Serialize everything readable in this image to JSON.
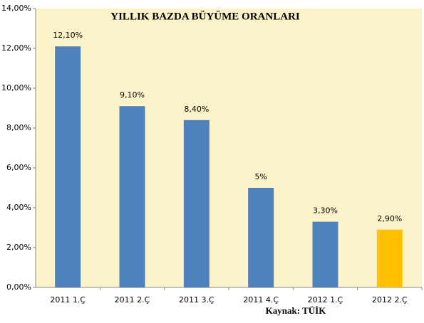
{
  "chart_data": {
    "type": "bar",
    "title": "YILLIK BAZDA BÜYÜME ORANLARI",
    "categories": [
      "2011 1.Ç",
      "2011 2.Ç",
      "2011 3.Ç",
      "2011 4.Ç",
      "2012 1.Ç",
      "2012 2.Ç"
    ],
    "values": [
      12.1,
      9.1,
      8.4,
      5,
      3.3,
      2.9
    ],
    "value_labels": [
      "12,10%",
      "9,10%",
      "8,40%",
      "5%",
      "3,30%",
      "2,90%"
    ],
    "colors": [
      "#4f81bd",
      "#4f81bd",
      "#4f81bd",
      "#4f81bd",
      "#4f81bd",
      "#ffc000"
    ],
    "ylim": [
      0,
      14
    ],
    "yticks": [
      {
        "value": 0,
        "label": "0,00%"
      },
      {
        "value": 2,
        "label": "2,00%"
      },
      {
        "value": 4,
        "label": "4,00%"
      },
      {
        "value": 6,
        "label": "6,00%"
      },
      {
        "value": 8,
        "label": "8,00%"
      },
      {
        "value": 10,
        "label": "10,00%"
      },
      {
        "value": 12,
        "label": "12,00%"
      },
      {
        "value": 14,
        "label": "14,00%"
      }
    ],
    "annotation": "Kaynak: TÜİK"
  }
}
